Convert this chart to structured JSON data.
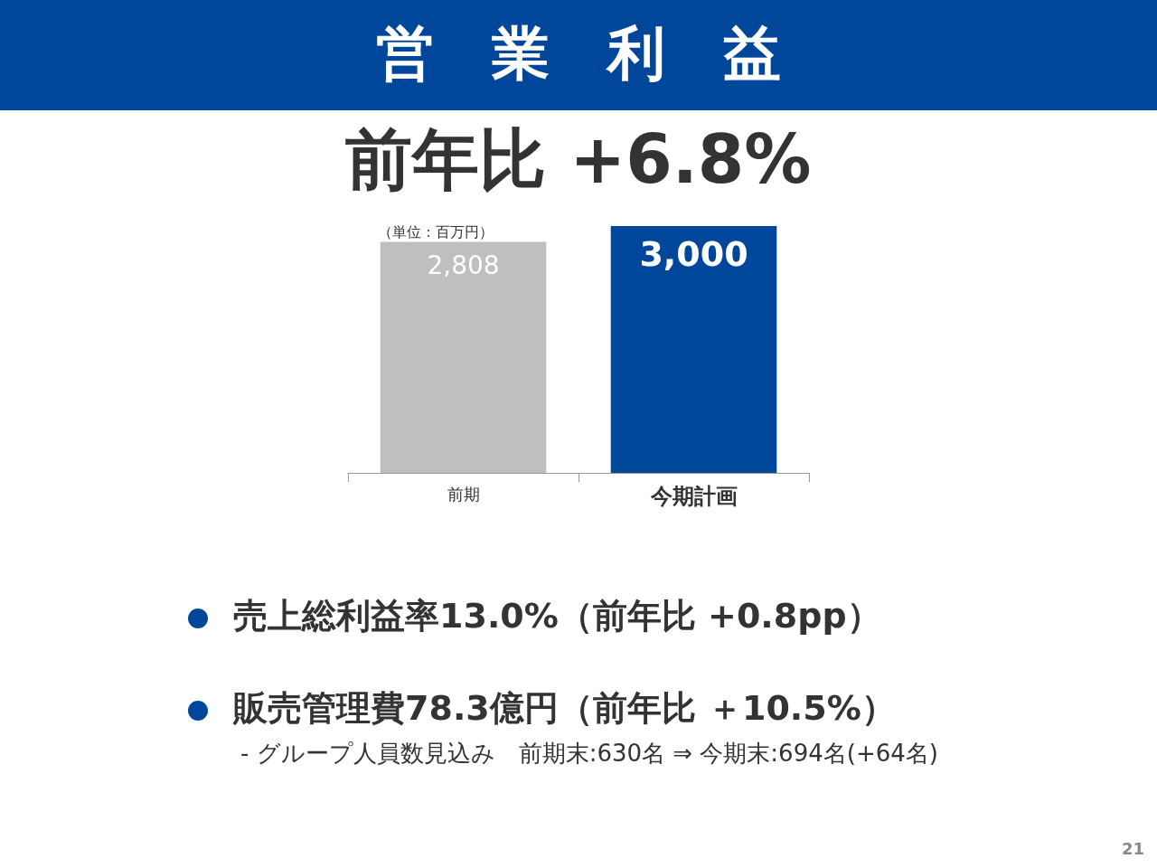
{
  "chart_data": {
    "type": "bar",
    "title": "営　業　利　益",
    "subtitle": "前年比 +6.8%",
    "categories": [
      "前期",
      "今期計画"
    ],
    "values": [
      2808,
      3000
    ],
    "colors": [
      "#bfbfbf",
      "#00469a"
    ],
    "value_labels": [
      "2,808",
      "3,000"
    ],
    "annotations": [
      "（単位：百万円）",
      "売上総利益率13.0%（前年比 +0.8pp）",
      "販売管理費78.3億円（前年比 ＋10.5%）",
      "- グループ人員数見込み　前期末:630名 ⇒ 今期末:694名(+64名)",
      "21"
    ]
  }
}
